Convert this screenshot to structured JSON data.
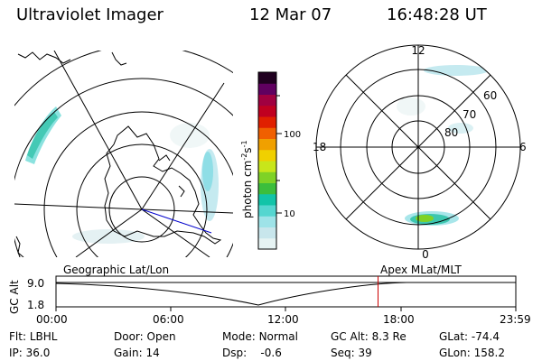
{
  "header": {
    "title": "Ultraviolet Imager",
    "date": "12 Mar 07",
    "time": "16:48:28 UT"
  },
  "colorbar": {
    "label_main": "photon cm",
    "label_exp1": "-2",
    "label_mid": "s",
    "label_exp2": "-1",
    "tick_high": "100",
    "tick_low": "10",
    "colors": [
      "#e6f3f3",
      "#c8e6ec",
      "#9ee3e8",
      "#55d6d0",
      "#12c4a8",
      "#3cbe3c",
      "#7fd226",
      "#c8e61a",
      "#f0d000",
      "#f0a000",
      "#f06000",
      "#e02000",
      "#c00020",
      "#a00040",
      "#600060",
      "#200020"
    ]
  },
  "left_panel": {
    "label": "Geographic Lat/Lon"
  },
  "right_panel": {
    "label": "Apex MLat/MLT",
    "mlt_12": "12",
    "mlt_18": "18",
    "mlt_6": "6",
    "mlt_0": "0",
    "lat_60": "60",
    "lat_70": "70",
    "lat_80": "80"
  },
  "timeline": {
    "ylabel": "GC Alt",
    "y_top": "9.0",
    "y_bottom": "1.8",
    "ticks": [
      "00:00",
      "06:00",
      "12:00",
      "18:00",
      "23:59"
    ],
    "current_time_hours": 16.81
  },
  "info": {
    "flt_label": "Flt:",
    "flt_value": "LBHL",
    "ip_label": "IP:",
    "ip_value": "36.0",
    "door_label": "Door:",
    "door_value": "Open",
    "gain_label": "Gain:",
    "gain_value": "14",
    "mode_label": "Mode:",
    "mode_value": "Normal",
    "dsp_label": "Dsp:",
    "dsp_value": "-0.6",
    "gcalt_label": "GC Alt:",
    "gcalt_value": "8.3 Re",
    "seq_label": "Seq:",
    "seq_value": "39",
    "glat_label": "GLat:",
    "glat_value": "-74.4",
    "glon_label": "GLon:",
    "glon_value": "158.2"
  }
}
